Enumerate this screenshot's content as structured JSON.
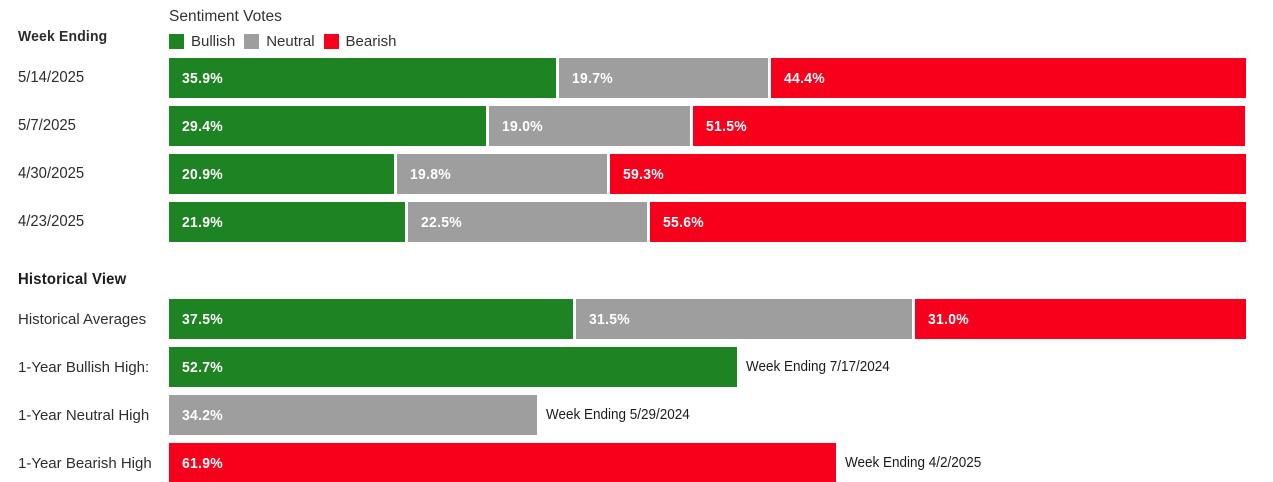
{
  "colors": {
    "bullish": "#1e8322",
    "neutral": "#9e9e9e",
    "bearish": "#f7001c",
    "text_dark": "#2d2d2d"
  },
  "header": {
    "week_ending_label": "Week Ending",
    "title": "Sentiment Votes",
    "legend": [
      {
        "label": "Bullish"
      },
      {
        "label": "Neutral"
      },
      {
        "label": "Bearish"
      }
    ]
  },
  "rows": [
    {
      "label": "5/14/2025",
      "segments": [
        {
          "name": "bullish",
          "pct": 35.9,
          "text": "35.9%"
        },
        {
          "name": "neutral",
          "pct": 19.7,
          "text": "19.7%"
        },
        {
          "name": "bearish",
          "pct": 44.4,
          "text": "44.4%"
        }
      ]
    },
    {
      "label": "5/7/2025",
      "segments": [
        {
          "name": "bullish",
          "pct": 29.4,
          "text": "29.4%"
        },
        {
          "name": "neutral",
          "pct": 19.0,
          "text": "19.0%"
        },
        {
          "name": "bearish",
          "pct": 51.5,
          "text": "51.5%"
        }
      ]
    },
    {
      "label": "4/30/2025",
      "segments": [
        {
          "name": "bullish",
          "pct": 20.9,
          "text": "20.9%"
        },
        {
          "name": "neutral",
          "pct": 19.8,
          "text": "19.8%"
        },
        {
          "name": "bearish",
          "pct": 59.3,
          "text": "59.3%"
        }
      ]
    },
    {
      "label": "4/23/2025",
      "segments": [
        {
          "name": "bullish",
          "pct": 21.9,
          "text": "21.9%"
        },
        {
          "name": "neutral",
          "pct": 22.5,
          "text": "22.5%"
        },
        {
          "name": "bearish",
          "pct": 55.6,
          "text": "55.6%"
        }
      ]
    }
  ],
  "historical": {
    "section_title": "Historical View",
    "averages": {
      "label": "Historical Averages",
      "segments": [
        {
          "name": "bullish",
          "pct": 37.5,
          "text": "37.5%"
        },
        {
          "name": "neutral",
          "pct": 31.5,
          "text": "31.5%"
        },
        {
          "name": "bearish",
          "pct": 31.0,
          "text": "31.0%"
        }
      ]
    },
    "highs": [
      {
        "label": "1-Year Bullish High:",
        "pct": 52.7,
        "text": "52.7%",
        "annotation": "Week Ending 7/17/2024"
      },
      {
        "label": "1-Year Neutral High",
        "pct": 34.2,
        "text": "34.2%",
        "annotation": "Week Ending 5/29/2024"
      },
      {
        "label": "1-Year Bearish High",
        "pct": 61.9,
        "text": "61.9%",
        "annotation": "Week Ending 4/2/2025"
      }
    ]
  },
  "chart_data": {
    "type": "bar",
    "subtype": "horizontal-stacked",
    "title": "Sentiment Votes",
    "unit": "%",
    "xlim": [
      0,
      100
    ],
    "legend_position": "top",
    "legend": [
      "Bullish",
      "Neutral",
      "Bearish"
    ],
    "categories": [
      "5/14/2025",
      "5/7/2025",
      "4/30/2025",
      "4/23/2025"
    ],
    "series": [
      {
        "name": "Bullish",
        "color": "#1e8322",
        "values": [
          35.9,
          29.4,
          20.9,
          21.9
        ]
      },
      {
        "name": "Neutral",
        "color": "#9e9e9e",
        "values": [
          19.7,
          19.0,
          19.8,
          22.5
        ]
      },
      {
        "name": "Bearish",
        "color": "#f7001c",
        "values": [
          44.4,
          51.5,
          59.3,
          55.6
        ]
      }
    ],
    "historical_view": {
      "averages": {
        "Bullish": 37.5,
        "Neutral": 31.5,
        "Bearish": 31.0
      },
      "one_year_bullish_high": {
        "value": 52.7,
        "week_ending": "7/17/2024"
      },
      "one_year_neutral_high": {
        "value": 34.2,
        "week_ending": "5/29/2024"
      },
      "one_year_bearish_high": {
        "value": 61.9,
        "week_ending": "4/2/2025"
      }
    }
  }
}
